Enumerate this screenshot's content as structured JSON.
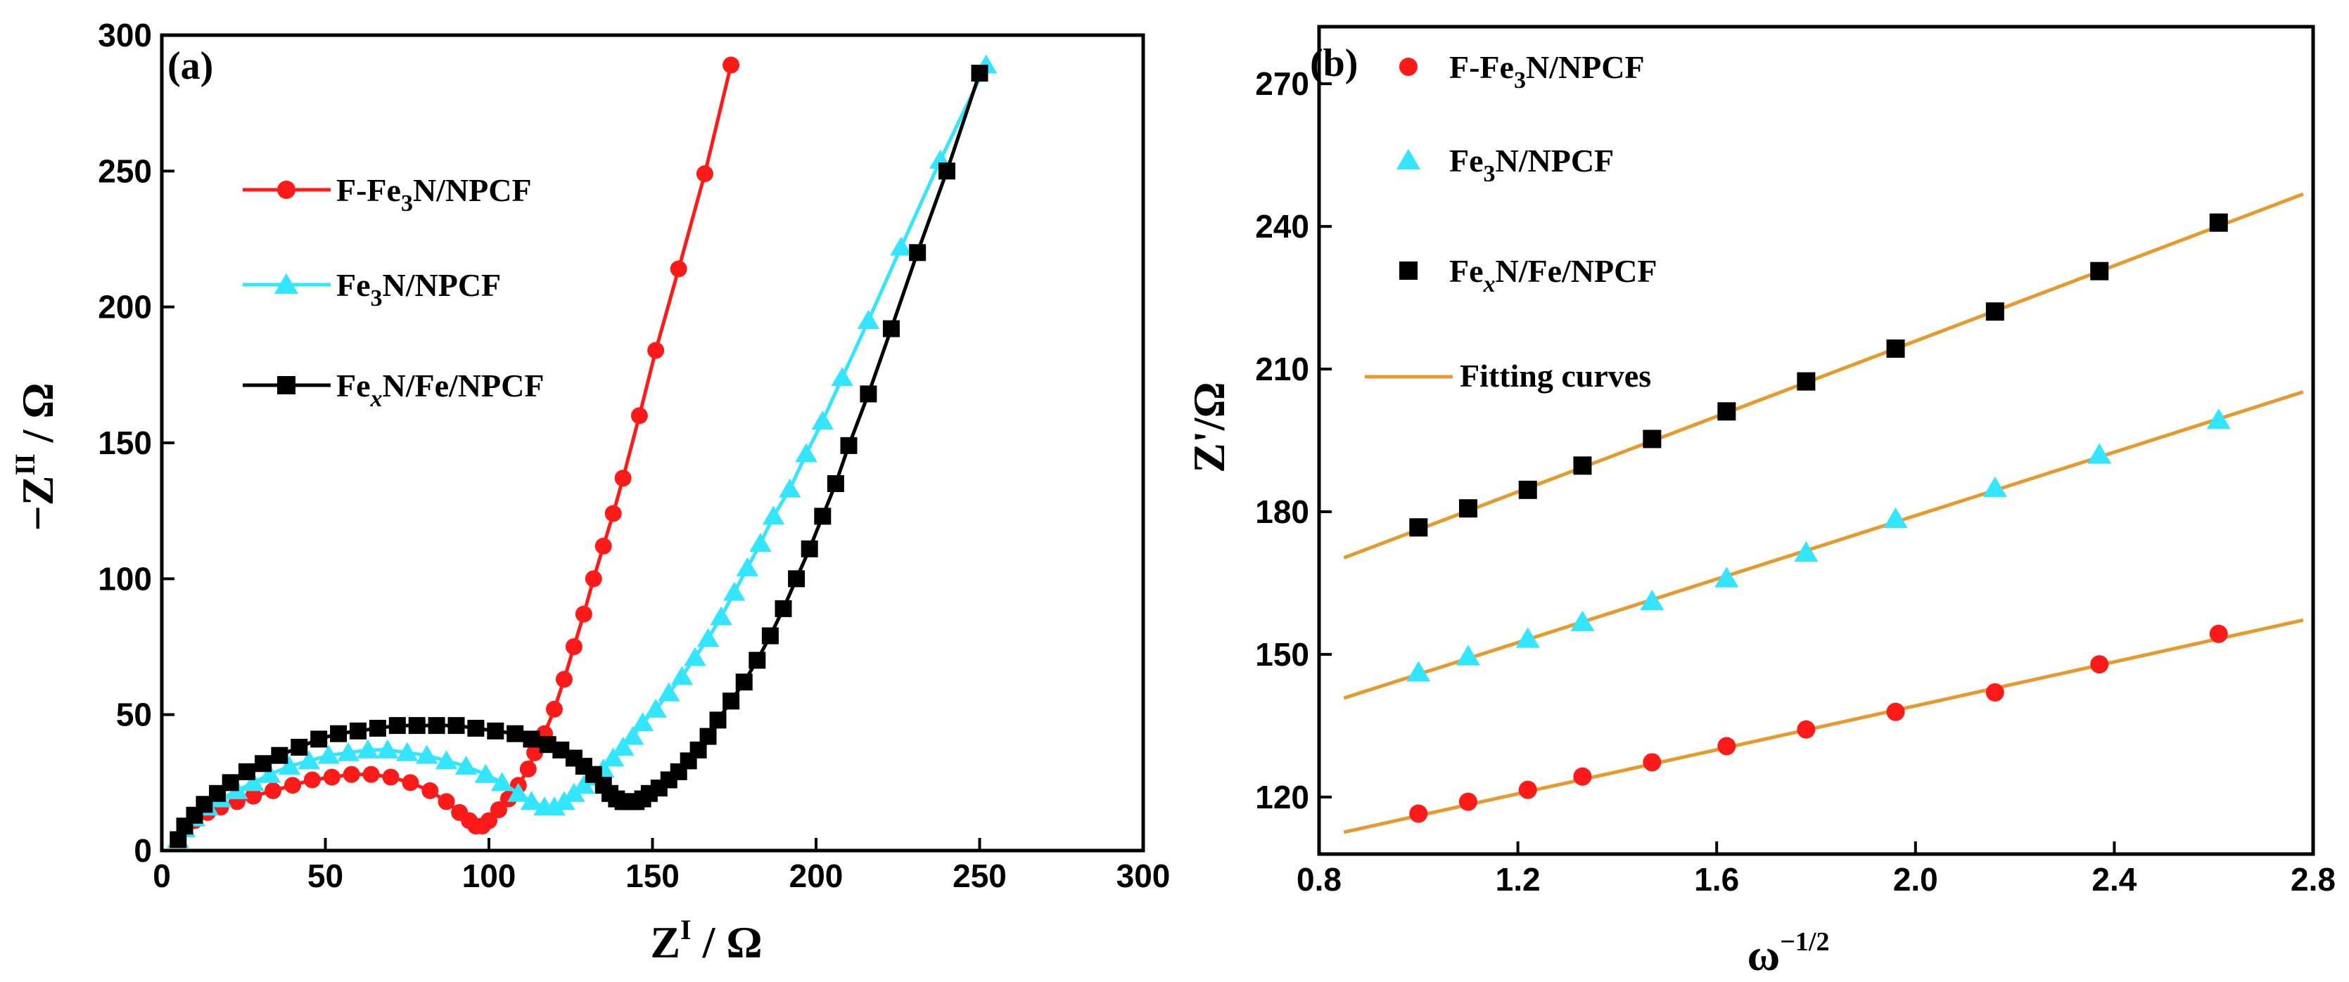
{
  "chart_data": [
    {
      "type": "line",
      "panel_label": "(a)",
      "xlabel_main": "Z",
      "xlabel_sup": "I",
      "xlabel_rest": " / Ω",
      "ylabel_main": "−Z",
      "ylabel_sup": "II",
      "ylabel_rest": " / Ω",
      "xlim": [
        0,
        300
      ],
      "ylim": [
        0,
        300
      ],
      "xticks": [
        0,
        50,
        100,
        150,
        200,
        250,
        300
      ],
      "yticks": [
        0,
        50,
        100,
        150,
        200,
        250,
        300
      ],
      "legend_position": "upper-left",
      "series": [
        {
          "name": "F-Fe3N/NPCF",
          "legend_parts": [
            "F-Fe",
            "3",
            "N/NPCF"
          ],
          "legend_sub_italic": false,
          "color": "#ff1a1a",
          "marker": "circle",
          "points": [
            [
              5,
              4
            ],
            [
              7,
              8
            ],
            [
              10,
              11
            ],
            [
              14,
              14
            ],
            [
              18,
              16
            ],
            [
              23,
              18
            ],
            [
              28,
              20
            ],
            [
              34,
              22
            ],
            [
              40,
              24
            ],
            [
              46,
              26
            ],
            [
              52,
              27
            ],
            [
              58,
              28
            ],
            [
              64,
              28
            ],
            [
              70,
              27
            ],
            [
              76,
              25
            ],
            [
              82,
              22
            ],
            [
              87,
              18
            ],
            [
              91,
              14
            ],
            [
              94,
              11
            ],
            [
              96,
              9
            ],
            [
              98,
              9
            ],
            [
              100,
              11
            ],
            [
              103,
              15
            ],
            [
              106,
              19
            ],
            [
              109,
              24
            ],
            [
              112,
              30
            ],
            [
              114,
              36
            ],
            [
              117,
              43
            ],
            [
              120,
              52
            ],
            [
              123,
              63
            ],
            [
              126,
              75
            ],
            [
              129,
              87
            ],
            [
              132,
              100
            ],
            [
              135,
              112
            ],
            [
              138,
              124
            ],
            [
              141,
              137
            ],
            [
              146,
              160
            ],
            [
              151,
              184
            ],
            [
              158,
              214
            ],
            [
              166,
              249
            ],
            [
              174,
              289
            ]
          ]
        },
        {
          "name": "Fe3N/NPCF",
          "legend_parts": [
            "Fe",
            "3",
            "N/NPCF"
          ],
          "legend_sub_italic": false,
          "color": "#33e5ff",
          "marker": "triangle",
          "points": [
            [
              5,
              4
            ],
            [
              7,
              8
            ],
            [
              10,
              12
            ],
            [
              14,
              16
            ],
            [
              18,
              19
            ],
            [
              23,
              22
            ],
            [
              28,
              25
            ],
            [
              33,
              28
            ],
            [
              39,
              31
            ],
            [
              45,
              33
            ],
            [
              51,
              35
            ],
            [
              57,
              36
            ],
            [
              63,
              37
            ],
            [
              69,
              37
            ],
            [
              75,
              36
            ],
            [
              81,
              35
            ],
            [
              87,
              33
            ],
            [
              93,
              31
            ],
            [
              99,
              28
            ],
            [
              104,
              25
            ],
            [
              109,
              21
            ],
            [
              113,
              18
            ],
            [
              117,
              16
            ],
            [
              120,
              16
            ],
            [
              123,
              18
            ],
            [
              126,
              21
            ],
            [
              129,
              24
            ],
            [
              132,
              27
            ],
            [
              135,
              30
            ],
            [
              138,
              34
            ],
            [
              141,
              38
            ],
            [
              144,
              42
            ],
            [
              147,
              47
            ],
            [
              151,
              52
            ],
            [
              155,
              58
            ],
            [
              159,
              64
            ],
            [
              163,
              71
            ],
            [
              167,
              78
            ],
            [
              171,
              86
            ],
            [
              175,
              95
            ],
            [
              179,
              104
            ],
            [
              183,
              113
            ],
            [
              187,
              123
            ],
            [
              192,
              133
            ],
            [
              197,
              146
            ],
            [
              202,
              158
            ],
            [
              208,
              174
            ],
            [
              216,
              195
            ],
            [
              226,
              222
            ],
            [
              238,
              254
            ],
            [
              252,
              289
            ]
          ]
        },
        {
          "name": "FexN/Fe/NPCF",
          "legend_parts": [
            "Fe",
            "x",
            "N/Fe/NPCF"
          ],
          "legend_sub_italic": true,
          "color": "#000000",
          "marker": "square",
          "points": [
            [
              5,
              4
            ],
            [
              7,
              9
            ],
            [
              10,
              13
            ],
            [
              13,
              17
            ],
            [
              17,
              21
            ],
            [
              21,
              25
            ],
            [
              26,
              29
            ],
            [
              31,
              32
            ],
            [
              36,
              35
            ],
            [
              42,
              38
            ],
            [
              48,
              41
            ],
            [
              54,
              43
            ],
            [
              60,
              44
            ],
            [
              66,
              45
            ],
            [
              72,
              46
            ],
            [
              78,
              46
            ],
            [
              84,
              46
            ],
            [
              90,
              46
            ],
            [
              96,
              45
            ],
            [
              102,
              44
            ],
            [
              108,
              43
            ],
            [
              113,
              41
            ],
            [
              118,
              39
            ],
            [
              122,
              37
            ],
            [
              126,
              34
            ],
            [
              129,
              31
            ],
            [
              132,
              28
            ],
            [
              135,
              24
            ],
            [
              137,
              21
            ],
            [
              139,
              19
            ],
            [
              141,
              18
            ],
            [
              143,
              18
            ],
            [
              145,
              18
            ],
            [
              147,
              19
            ],
            [
              149,
              21
            ],
            [
              152,
              23
            ],
            [
              155,
              26
            ],
            [
              158,
              29
            ],
            [
              161,
              33
            ],
            [
              164,
              37
            ],
            [
              167,
              42
            ],
            [
              170,
              48
            ],
            [
              174,
              55
            ],
            [
              178,
              62
            ],
            [
              182,
              70
            ],
            [
              186,
              79
            ],
            [
              190,
              89
            ],
            [
              194,
              100
            ],
            [
              198,
              111
            ],
            [
              202,
              123
            ],
            [
              206,
              135
            ],
            [
              210,
              149
            ],
            [
              216,
              168
            ],
            [
              223,
              192
            ],
            [
              231,
              220
            ],
            [
              240,
              250
            ],
            [
              250,
              286
            ]
          ]
        }
      ]
    },
    {
      "type": "scatter",
      "panel_label": "(b)",
      "xlabel_main": "ω",
      "xlabel_sup": "−1/2",
      "ylabel": "Z'/Ω",
      "xlim": [
        0.8,
        2.8
      ],
      "ylim": [
        108,
        282
      ],
      "xticks": [
        0.8,
        1.2,
        1.6,
        2.0,
        2.4,
        2.8
      ],
      "xtick_labels": [
        "0.8",
        "1.2",
        "1.6",
        "2.0",
        "2.4",
        "2.8"
      ],
      "yticks": [
        120,
        150,
        180,
        210,
        240,
        270
      ],
      "legend_position": "upper-left",
      "fit_label": "Fitting curves",
      "fit_color": "#e69a2e",
      "x": [
        1.0,
        1.1,
        1.22,
        1.33,
        1.47,
        1.62,
        1.78,
        1.96,
        2.16,
        2.37,
        2.61
      ],
      "series": [
        {
          "name": "F-Fe3N/NPCF",
          "legend_parts": [
            "F-Fe",
            "3",
            "N/NPCF"
          ],
          "legend_sub_italic": false,
          "color": "#ff1a1a",
          "marker": "circle",
          "y": [
            116.5,
            119.0,
            121.5,
            124.3,
            127.3,
            130.7,
            134.2,
            137.9,
            142.0,
            147.9,
            154.3
          ],
          "fit": [
            [
              0.85,
              112.6
            ],
            [
              2.78,
              157.2
            ]
          ]
        },
        {
          "name": "Fe3N/NPCF",
          "legend_parts": [
            "Fe",
            "3",
            "N/NPCF"
          ],
          "legend_sub_italic": false,
          "color": "#33e5ff",
          "marker": "triangle",
          "y": [
            146.2,
            149.6,
            153.3,
            156.8,
            161.2,
            166.0,
            171.4,
            178.5,
            185.0,
            192.0,
            199.3
          ],
          "fit": [
            [
              0.85,
              140.8
            ],
            [
              2.78,
              205.2
            ]
          ]
        },
        {
          "name": "FexN/Fe/NPCF",
          "legend_parts": [
            "Fe",
            "x",
            "N/Fe/NPCF"
          ],
          "legend_sub_italic": true,
          "color": "#000000",
          "marker": "square",
          "y": [
            176.7,
            180.7,
            184.6,
            189.7,
            195.3,
            201.1,
            207.4,
            214.3,
            222.1,
            230.6,
            240.8
          ],
          "fit": [
            [
              0.85,
              170.3
            ],
            [
              2.78,
              246.8
            ]
          ]
        }
      ]
    }
  ]
}
